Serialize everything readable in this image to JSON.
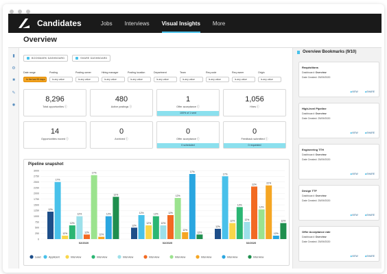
{
  "app": {
    "brand": "Candidates",
    "nav": [
      "Jobs",
      "Interviews",
      "Visual Insights",
      "More"
    ],
    "active_nav": "Visual Insights",
    "page_title": "Overview"
  },
  "toolbar": {
    "bookmark_label": "Bookmark dashboard",
    "share_label": "Share dashboard"
  },
  "filters": [
    {
      "label": "Date range",
      "value": "In the last 90 days",
      "highlight": true
    },
    {
      "label": "Posting",
      "value": "is any value"
    },
    {
      "label": "Posting owner",
      "value": "is any value"
    },
    {
      "label": "Hiring manager",
      "value": "is any value"
    },
    {
      "label": "Posting location",
      "value": "is any value"
    },
    {
      "label": "Department",
      "value": "is any value"
    },
    {
      "label": "Team",
      "value": "is any value"
    },
    {
      "label": "Req code",
      "value": "is any value"
    },
    {
      "label": "Req owner",
      "value": "is any value"
    },
    {
      "label": "Origin",
      "value": "is any value"
    }
  ],
  "metrics": [
    {
      "value": "8,296",
      "label": "Total opportunities"
    },
    {
      "value": "480",
      "label": "Active postings"
    },
    {
      "value": "1",
      "label": "Offer acceptance",
      "strip": "100% of 1 sent"
    },
    {
      "value": "1,056",
      "label": "Hires"
    },
    {
      "value": "14",
      "label": "Opportunities moved"
    },
    {
      "value": "0",
      "label": "Archived"
    },
    {
      "value": "0",
      "label": "Offer acceptance",
      "strip": "0 scheduled"
    },
    {
      "value": "0",
      "label": "Feedback submitted",
      "strip": "0 requested"
    }
  ],
  "sidebar": {
    "title": "Overview Bookmarks (9/10)",
    "view_label": "View",
    "share_label": "Share",
    "bookmarks": [
      {
        "title": "Requisitions",
        "dashboard_label": "Dashboard:",
        "dashboard": "Overview",
        "created_label": "Date Created:",
        "created": "25/09/2020"
      },
      {
        "title": "High-level Pipeline",
        "dashboard_label": "Dashboard:",
        "dashboard": "Overview",
        "created_label": "Date Created:",
        "created": "25/09/2020"
      },
      {
        "title": "Engineering TTH",
        "dashboard_label": "Dashboard:",
        "dashboard": "Overview",
        "created_label": "Date Created:",
        "created": "25/09/2020"
      },
      {
        "title": "Design TTF",
        "dashboard_label": "Dashboard:",
        "dashboard": "Overview",
        "created_label": "Date Created:",
        "created": "25/09/2020"
      },
      {
        "title": "Offer Acceptance rate",
        "dashboard_label": "Dashboard:",
        "dashboard": "Overview",
        "created_label": "Date Created:",
        "created": "25/09/2020"
      }
    ]
  },
  "colors": [
    "#1d4e89",
    "#48c1ea",
    "#f9d64a",
    "#2bb673",
    "#9de0ea",
    "#f26a22",
    "#9be38e",
    "#f5a623",
    "#2aa6e0",
    "#1f8f4e"
  ],
  "chart_data": {
    "type": "bar",
    "title": "Pipeline snapshot",
    "categories": [
      "02/2020",
      "02/2020",
      "02/2020"
    ],
    "ylim": [
      0,
      3000
    ],
    "yticks": [
      0,
      250,
      500,
      750,
      1000,
      1250,
      1500,
      1750,
      2000,
      2250,
      2500,
      2750,
      3000
    ],
    "series": [
      {
        "name": "Lead",
        "values": [
          1200,
          500,
          450
        ]
      },
      {
        "name": "Applicant",
        "values": [
          2500,
          1050,
          2750
        ]
      },
      {
        "name": "Interview",
        "values": [
          150,
          600,
          700
        ]
      },
      {
        "name": "Interview",
        "values": [
          600,
          1000,
          1400
        ]
      },
      {
        "name": "Interview",
        "values": [
          1000,
          600,
          750
        ]
      },
      {
        "name": "Interview",
        "values": [
          200,
          1050,
          2300
        ]
      },
      {
        "name": "Interview",
        "values": [
          2800,
          1800,
          1300
        ]
      },
      {
        "name": "Interview",
        "values": [
          100,
          300,
          2350
        ]
      },
      {
        "name": "Interview",
        "values": [
          1000,
          2850,
          150
        ]
      },
      {
        "name": "Interview",
        "values": [
          1850,
          200,
          700
        ]
      }
    ],
    "data_labels": [
      [
        "12%",
        "17%",
        "12%",
        "12%",
        "12%",
        "12%",
        "17%",
        "12%",
        "12%",
        "12%"
      ],
      [
        "12%",
        "12%",
        "12%",
        "12%",
        "12%",
        "12%",
        "12%",
        "12%",
        "17%",
        "12%"
      ],
      [
        "12%",
        "17%",
        "12%",
        "12%",
        "12%",
        "22%",
        "12%",
        "22%",
        "12%",
        "12%"
      ]
    ],
    "grid": true,
    "legend_position": "bottom"
  }
}
